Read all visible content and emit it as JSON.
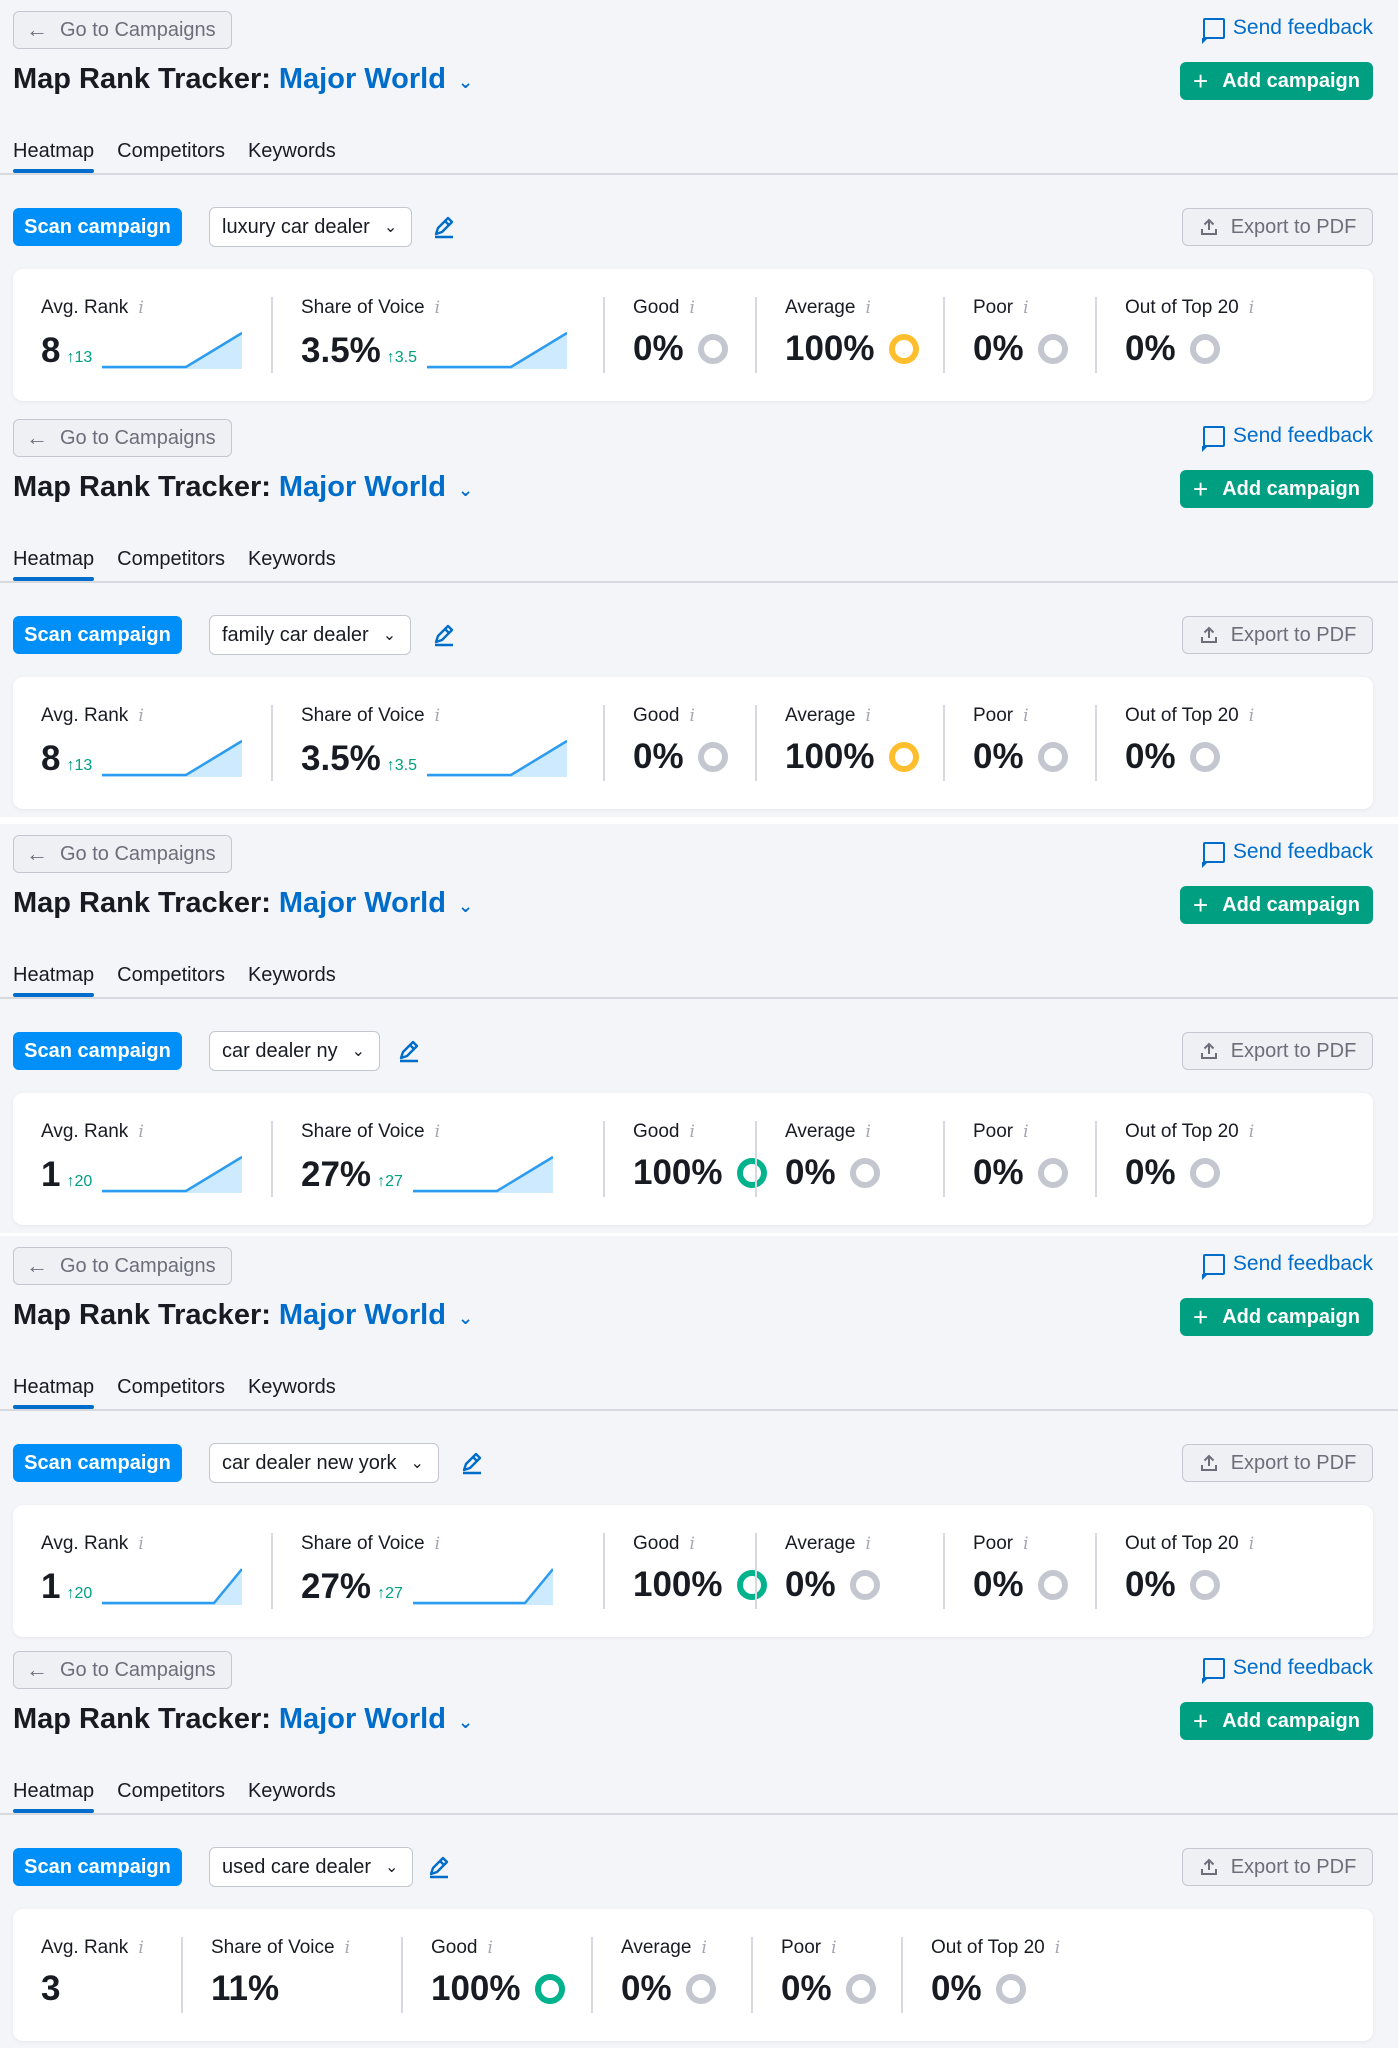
{
  "colors": {
    "accent": "#006dca",
    "scan": "#008ff8",
    "add": "#009f81",
    "good": "#00b38c",
    "average": "#ffbe2e",
    "poor": "#c4c7cf"
  },
  "common": {
    "back_label": "Go to Campaigns",
    "feedback_label": "Send feedback",
    "title_prefix": "Map Rank Tracker:",
    "project": "Major World",
    "add_label": "Add campaign",
    "tabs": [
      "Heatmap",
      "Competitors",
      "Keywords"
    ],
    "scan_label": "Scan campaign",
    "export_label": "Export to PDF",
    "labels": {
      "avg_rank": "Avg. Rank",
      "sov": "Share of Voice",
      "good": "Good",
      "average": "Average",
      "poor": "Poor",
      "top20": "Out of Top 20"
    }
  },
  "panels": [
    {
      "keyword": "luxury car dealer",
      "avg_rank": "8",
      "avg_delta": "↑13",
      "sov": "3.5%",
      "sov_delta": "↑3.5",
      "good": "0%",
      "average": "100%",
      "poor": "0%",
      "top20": "0%",
      "active": "average",
      "trend": [
        0.0,
        0.0,
        0.0,
        0.0,
        0.5,
        1.0
      ]
    },
    {
      "keyword": "family car dealer",
      "avg_rank": "8",
      "avg_delta": "↑13",
      "sov": "3.5%",
      "sov_delta": "↑3.5",
      "good": "0%",
      "average": "100%",
      "poor": "0%",
      "top20": "0%",
      "active": "average",
      "trend": [
        0.0,
        0.0,
        0.0,
        0.0,
        0.5,
        1.0
      ]
    },
    {
      "keyword": "car dealer ny",
      "avg_rank": "1",
      "avg_delta": "↑20",
      "sov": "27%",
      "sov_delta": "↑27",
      "good": "100%",
      "average": "0%",
      "poor": "0%",
      "top20": "0%",
      "active": "good",
      "trend": [
        0.0,
        0.0,
        0.0,
        0.0,
        0.5,
        1.0
      ]
    },
    {
      "keyword": "car dealer new york",
      "avg_rank": "1",
      "avg_delta": "↑20",
      "sov": "27%",
      "sov_delta": "↑27",
      "good": "100%",
      "average": "0%",
      "poor": "0%",
      "top20": "0%",
      "active": "good",
      "trend": [
        0.0,
        0.0,
        0.0,
        0.0,
        0.0,
        1.0
      ]
    },
    {
      "keyword": "used care dealer",
      "avg_rank": "3",
      "avg_delta": "",
      "sov": "11%",
      "sov_delta": "",
      "good": "100%",
      "average": "0%",
      "poor": "0%",
      "top20": "0%",
      "active": "good",
      "trend": null
    }
  ]
}
